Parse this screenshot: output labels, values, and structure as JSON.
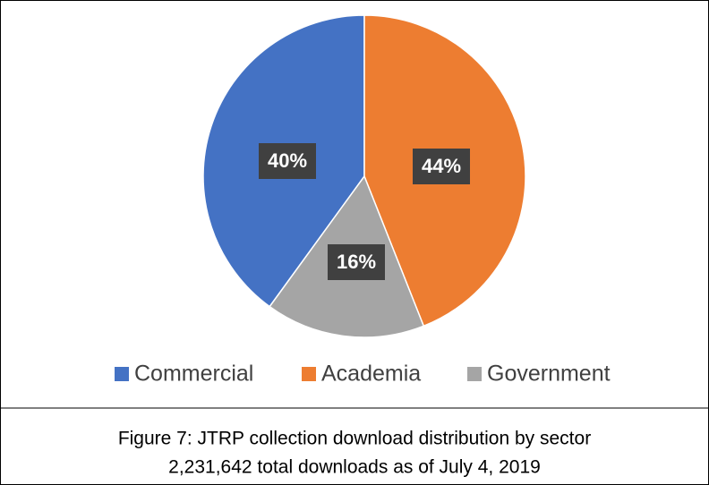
{
  "chart_data": {
    "type": "pie",
    "categories": [
      "Commercial",
      "Academia",
      "Government"
    ],
    "values": [
      40,
      44,
      16
    ],
    "value_labels": [
      "40%",
      "44%",
      "16%"
    ],
    "colors": [
      "#4472c4",
      "#ed7d31",
      "#a5a5a5"
    ],
    "legend": "bottom",
    "caption": [
      "Figure 7:  JTRP collection download distribution by sector",
      "2,231,642 total downloads as of July 4, 2019"
    ]
  }
}
